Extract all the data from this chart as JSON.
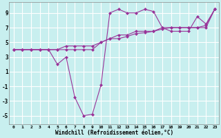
{
  "line1_x": [
    0,
    1,
    2,
    3,
    4,
    5,
    6,
    7,
    8,
    9,
    10,
    11,
    12,
    13,
    14,
    15,
    16,
    17,
    18,
    19,
    20,
    21,
    22,
    23
  ],
  "line1_y": [
    4.0,
    4.0,
    4.0,
    4.0,
    4.0,
    4.0,
    4.5,
    4.5,
    4.5,
    4.5,
    5.0,
    5.5,
    6.0,
    6.0,
    6.5,
    6.5,
    6.5,
    7.0,
    7.0,
    7.0,
    7.0,
    7.0,
    7.0,
    9.5
  ],
  "line2_x": [
    0,
    1,
    2,
    3,
    4,
    5,
    6,
    7,
    8,
    9,
    10,
    11,
    12,
    13,
    14,
    15,
    16,
    17,
    18,
    19,
    20,
    21,
    22,
    23
  ],
  "line2_y": [
    4.0,
    4.0,
    4.0,
    4.0,
    4.0,
    2.0,
    3.0,
    -2.5,
    -5.0,
    -4.8,
    -0.8,
    9.0,
    9.5,
    9.0,
    9.0,
    9.5,
    9.2,
    7.0,
    6.5,
    6.5,
    6.5,
    8.5,
    7.5,
    9.5
  ],
  "line3_x": [
    0,
    1,
    2,
    3,
    4,
    5,
    6,
    7,
    8,
    9,
    10,
    11,
    12,
    13,
    14,
    15,
    16,
    17,
    18,
    19,
    20,
    21,
    22,
    23
  ],
  "line3_y": [
    4.0,
    4.0,
    4.0,
    4.0,
    4.0,
    4.0,
    4.0,
    4.0,
    4.0,
    4.0,
    5.0,
    5.5,
    5.5,
    5.8,
    6.2,
    6.3,
    6.5,
    6.8,
    7.0,
    7.0,
    7.0,
    7.0,
    7.3,
    9.5
  ],
  "line_color": "#993399",
  "bg_color": "#c8efef",
  "grid_color": "#aadddd",
  "xlabel": "Windchill (Refroidissement éolien,°C)",
  "yticks": [
    -5,
    -3,
    -1,
    1,
    3,
    5,
    7,
    9
  ],
  "xtick_labels": [
    "0",
    "1",
    "2",
    "3",
    "4",
    "5",
    "6",
    "7",
    "8",
    "9",
    "10",
    "11",
    "12",
    "13",
    "14",
    "15",
    "16",
    "17",
    "18",
    "19",
    "20",
    "21",
    "22",
    "23"
  ],
  "xtick_positions": [
    0,
    1,
    2,
    3,
    4,
    5,
    6,
    7,
    8,
    9,
    10,
    11,
    12,
    13,
    14,
    15,
    16,
    17,
    18,
    19,
    20,
    21,
    22,
    23
  ],
  "xlim": [
    -0.5,
    23.5
  ],
  "ylim": [
    -6.2,
    10.5
  ],
  "marker": "D",
  "markersize": 2.0,
  "linewidth": 0.8
}
